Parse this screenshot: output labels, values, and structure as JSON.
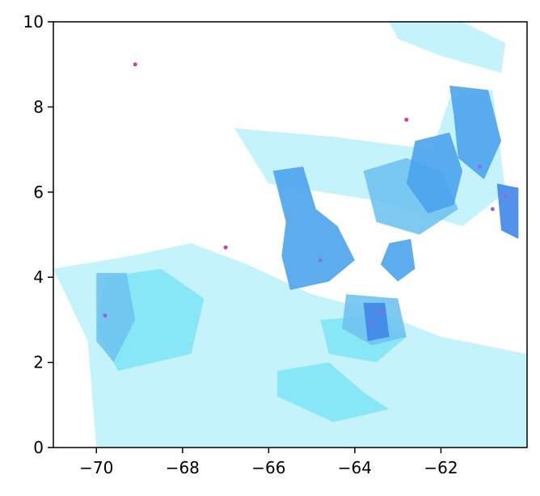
{
  "chart_data": {
    "type": "heatmap",
    "title": "",
    "xlabel": "",
    "ylabel": "",
    "xlim": [
      -71,
      -60
    ],
    "ylim": [
      0,
      10
    ],
    "grid": false,
    "x_ticks": [
      -70,
      -68,
      -66,
      -64,
      -62
    ],
    "x_tick_labels": [
      "−70",
      "−68",
      "−66",
      "−64",
      "−62"
    ],
    "y_ticks": [
      0,
      2,
      4,
      6,
      8,
      10
    ],
    "y_tick_labels": [
      "0",
      "2",
      "4",
      "6",
      "8",
      "10"
    ],
    "colors": {
      "background": "#ffffff",
      "light": "#bff2fb",
      "cyan": "#7fe6f5",
      "medium": "#6fc3ef",
      "strong": "#4aa3ec",
      "deep": "#3f86e8",
      "speckle": "#8b6fd6",
      "accent": "#d0429a"
    },
    "regions": [
      {
        "level": "light",
        "polygon": [
          [
            -71,
            4.2
          ],
          [
            -69.2,
            4.5
          ],
          [
            -67.8,
            4.8
          ],
          [
            -66.5,
            4.3
          ],
          [
            -65,
            3.6
          ],
          [
            -63.5,
            3.2
          ],
          [
            -62,
            2.6
          ],
          [
            -60,
            2.2
          ],
          [
            -60,
            0
          ],
          [
            -70,
            0
          ],
          [
            -70.2,
            2.5
          ]
        ]
      },
      {
        "level": "light",
        "polygon": [
          [
            -66.8,
            7.5
          ],
          [
            -64.5,
            7.3
          ],
          [
            -62.2,
            7.0
          ],
          [
            -61.8,
            8.2
          ],
          [
            -60.8,
            8.4
          ],
          [
            -60.5,
            6.0
          ],
          [
            -61.5,
            5.2
          ],
          [
            -63.5,
            5.8
          ],
          [
            -66.0,
            6.2
          ]
        ]
      },
      {
        "level": "light",
        "polygon": [
          [
            -63.2,
            10
          ],
          [
            -61.5,
            10
          ],
          [
            -60.5,
            9.5
          ],
          [
            -60.6,
            8.8
          ],
          [
            -62.0,
            9.2
          ],
          [
            -63.0,
            9.6
          ]
        ]
      },
      {
        "level": "cyan",
        "polygon": [
          [
            -69.8,
            4.0
          ],
          [
            -68.5,
            4.2
          ],
          [
            -67.5,
            3.5
          ],
          [
            -67.8,
            2.2
          ],
          [
            -69.5,
            1.8
          ],
          [
            -70.0,
            2.8
          ]
        ]
      },
      {
        "level": "cyan",
        "polygon": [
          [
            -65.8,
            1.8
          ],
          [
            -64.6,
            2.0
          ],
          [
            -63.8,
            1.3
          ],
          [
            -63.2,
            0.9
          ],
          [
            -64.5,
            0.6
          ],
          [
            -65.8,
            1.2
          ]
        ]
      },
      {
        "level": "cyan",
        "polygon": [
          [
            -64.8,
            3.0
          ],
          [
            -63.5,
            3.1
          ],
          [
            -62.8,
            2.6
          ],
          [
            -63.5,
            2.0
          ],
          [
            -64.6,
            2.2
          ]
        ]
      },
      {
        "level": "medium",
        "polygon": [
          [
            -70.0,
            4.1
          ],
          [
            -69.3,
            4.1
          ],
          [
            -69.1,
            3.0
          ],
          [
            -69.6,
            2.0
          ],
          [
            -70.0,
            2.5
          ]
        ]
      },
      {
        "level": "medium",
        "polygon": [
          [
            -64.2,
            3.6
          ],
          [
            -63.0,
            3.5
          ],
          [
            -62.8,
            2.6
          ],
          [
            -63.6,
            2.4
          ],
          [
            -64.3,
            2.8
          ]
        ]
      },
      {
        "level": "medium",
        "polygon": [
          [
            -63.8,
            6.5
          ],
          [
            -62.8,
            6.8
          ],
          [
            -62.0,
            6.5
          ],
          [
            -61.6,
            5.6
          ],
          [
            -62.5,
            5.0
          ],
          [
            -63.5,
            5.3
          ]
        ]
      },
      {
        "level": "strong",
        "polygon": [
          [
            -65.9,
            6.5
          ],
          [
            -65.2,
            6.6
          ],
          [
            -64.9,
            5.6
          ],
          [
            -64.4,
            5.2
          ],
          [
            -64.0,
            4.4
          ],
          [
            -64.6,
            3.9
          ],
          [
            -65.5,
            3.7
          ],
          [
            -65.7,
            4.5
          ],
          [
            -65.6,
            5.3
          ]
        ]
      },
      {
        "level": "strong",
        "polygon": [
          [
            -62.6,
            7.2
          ],
          [
            -61.8,
            7.4
          ],
          [
            -61.5,
            6.5
          ],
          [
            -61.7,
            5.7
          ],
          [
            -62.3,
            5.5
          ],
          [
            -62.8,
            6.2
          ]
        ]
      },
      {
        "level": "strong",
        "polygon": [
          [
            -61.8,
            8.5
          ],
          [
            -60.9,
            8.4
          ],
          [
            -60.6,
            7.2
          ],
          [
            -61.0,
            6.3
          ],
          [
            -61.6,
            6.8
          ],
          [
            -61.7,
            7.8
          ]
        ]
      },
      {
        "level": "strong",
        "polygon": [
          [
            -63.2,
            4.8
          ],
          [
            -62.7,
            4.9
          ],
          [
            -62.6,
            4.2
          ],
          [
            -63.0,
            3.9
          ],
          [
            -63.4,
            4.3
          ]
        ]
      },
      {
        "level": "deep",
        "polygon": [
          [
            -60.7,
            6.2
          ],
          [
            -60.2,
            6.1
          ],
          [
            -60.2,
            4.9
          ],
          [
            -60.6,
            5.1
          ]
        ]
      },
      {
        "level": "deep",
        "polygon": [
          [
            -63.8,
            3.4
          ],
          [
            -63.3,
            3.4
          ],
          [
            -63.2,
            2.6
          ],
          [
            -63.7,
            2.5
          ]
        ]
      }
    ],
    "speckles": [
      {
        "level": "speckle",
        "x": -60.8,
        "y": 5.6
      },
      {
        "level": "speckle",
        "x": -60.5,
        "y": 5.9
      },
      {
        "level": "speckle",
        "x": -61.1,
        "y": 6.6
      },
      {
        "level": "speckle",
        "x": -64.8,
        "y": 4.4
      },
      {
        "level": "speckle",
        "x": -63.6,
        "y": 2.9
      },
      {
        "level": "speckle",
        "x": -63.4,
        "y": 3.2
      },
      {
        "level": "speckle",
        "x": -69.8,
        "y": 3.1
      },
      {
        "level": "accent",
        "x": -62.8,
        "y": 7.7
      },
      {
        "level": "accent",
        "x": -69.1,
        "y": 9.0
      },
      {
        "level": "accent",
        "x": -67.0,
        "y": 4.7
      }
    ]
  }
}
